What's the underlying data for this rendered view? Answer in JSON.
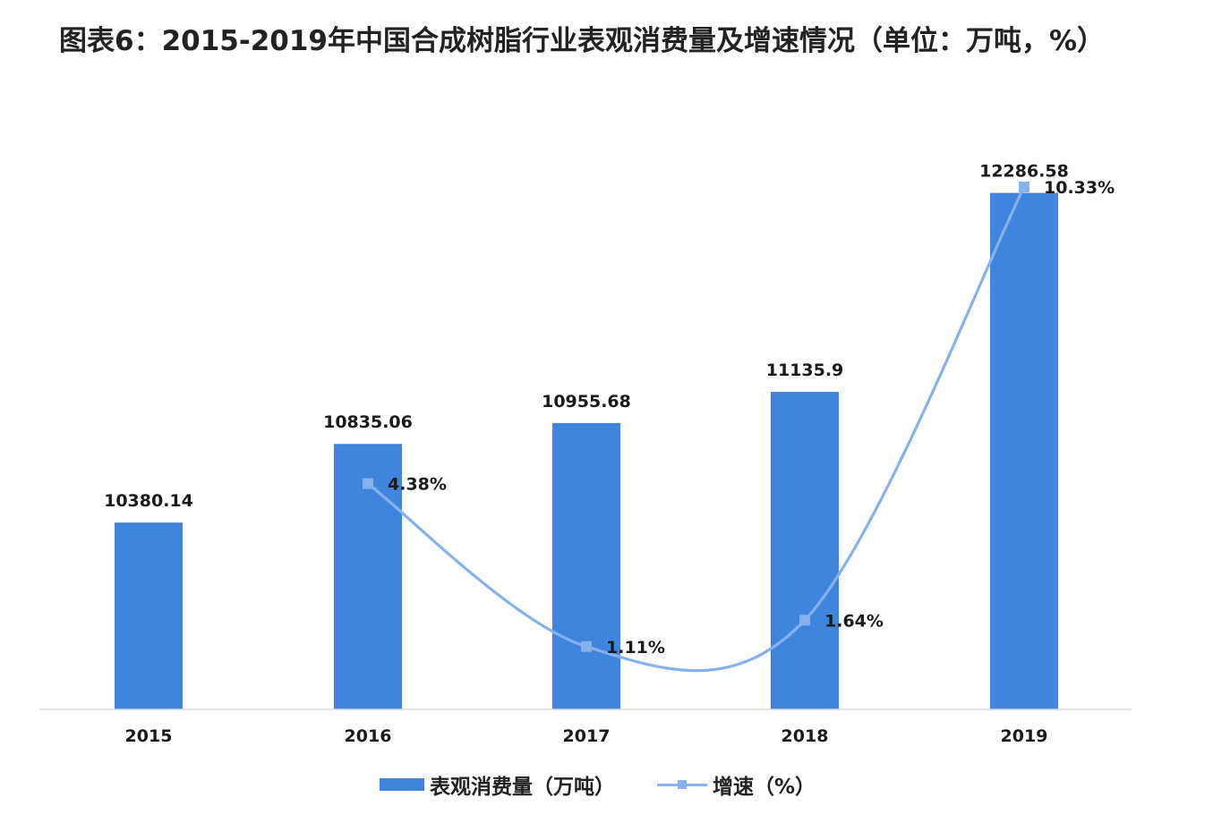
{
  "title": "图表6：2015-2019年中国合成树脂行业表观消费量及增速情况（单位：万吨，%）",
  "colors": {
    "bar": "#3f85de",
    "line": "#87b1ec",
    "marker": "#87b1ec",
    "axis": "#d9d9d9",
    "text": "#1a1a1a"
  },
  "legend": {
    "bar_label": "表观消费量（万吨）",
    "line_label": "增速（%）"
  },
  "chart_data": {
    "type": "bar",
    "categories": [
      "2015",
      "2016",
      "2017",
      "2018",
      "2019"
    ],
    "series": [
      {
        "name": "表观消费量（万吨）",
        "type": "bar",
        "values": [
          10380.14,
          10835.06,
          10955.68,
          11135.9,
          12286.58
        ],
        "labels": [
          "10380.14",
          "10835.06",
          "10955.68",
          "11135.9",
          "12286.58"
        ]
      },
      {
        "name": "增速（%）",
        "type": "line",
        "smooth": true,
        "values": [
          null,
          4.38,
          1.11,
          1.64,
          10.33
        ],
        "labels": [
          "",
          "4.38%",
          "1.11%",
          "1.64%",
          "10.33%"
        ]
      }
    ],
    "y_left_range": [
      9300,
      12600
    ],
    "y_right_range": [
      -0.15,
      11.3
    ],
    "grid": false,
    "legend_position": "bottom"
  }
}
